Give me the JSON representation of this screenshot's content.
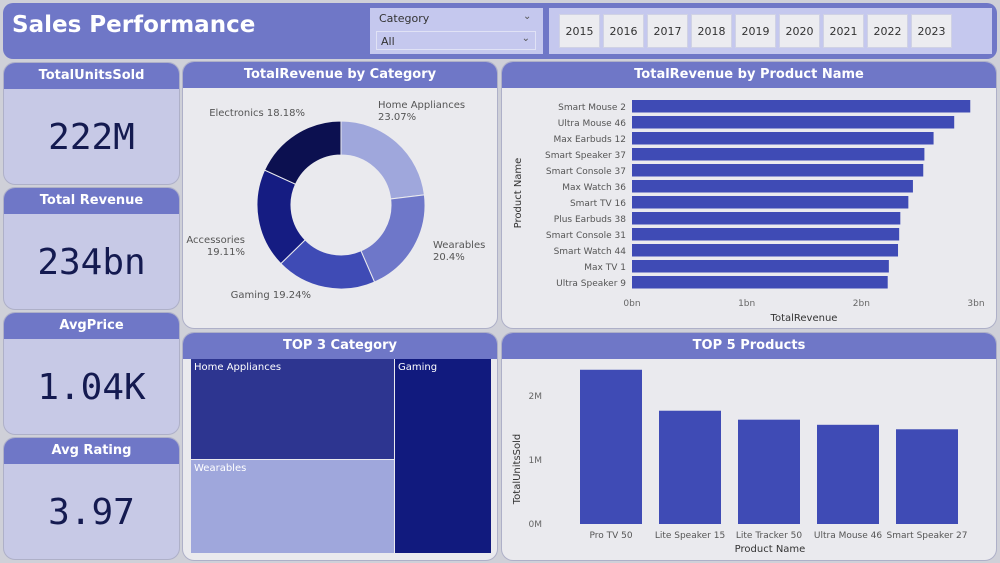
{
  "header": {
    "title": "Sales Performance"
  },
  "slicer": {
    "label": "Category",
    "value": "All",
    "icon": "chevron-down-icon"
  },
  "years": [
    "2015",
    "2016",
    "2017",
    "2018",
    "2019",
    "2020",
    "2021",
    "2022",
    "2023"
  ],
  "kpis": [
    {
      "label": "TotalUnitsSold",
      "value": "222M"
    },
    {
      "label": "Total Revenue",
      "value": "234bn"
    },
    {
      "label": "AvgPrice",
      "value": "1.04K"
    },
    {
      "label": "Avg Rating",
      "value": "3.97"
    }
  ],
  "colors": {
    "accent": "#6f77c7",
    "bar": "#3f4bb5"
  },
  "chart_data": [
    {
      "type": "pie",
      "title": "TotalRevenue by Category",
      "donut": true,
      "categories": [
        "Home Appliances",
        "Wearables",
        "Gaming",
        "Accessories",
        "Electronics"
      ],
      "values": [
        23.07,
        20.4,
        19.24,
        19.11,
        18.18
      ],
      "labels": [
        "23.07%",
        "20.4%",
        "19.24%",
        "19.11%",
        "18.18%"
      ],
      "colors": [
        "#9fa7dc",
        "#6e77c9",
        "#3f4bb5",
        "#151c82",
        "#0c1050"
      ]
    },
    {
      "type": "bar",
      "orientation": "horizontal",
      "title": "TotalRevenue by Product Name",
      "xlabel": "TotalRevenue",
      "ylabel": "Product Name",
      "categories": [
        "Smart Mouse 2",
        "Ultra Mouse 46",
        "Max Earbuds 12",
        "Smart Speaker 37",
        "Smart Console 37",
        "Max Watch 36",
        "Smart TV 16",
        "Plus Earbuds 38",
        "Smart Console 31",
        "Smart Watch 44",
        "Max TV 1",
        "Ultra Speaker 9"
      ],
      "values": [
        2.95,
        2.81,
        2.63,
        2.55,
        2.54,
        2.45,
        2.41,
        2.34,
        2.33,
        2.32,
        2.24,
        2.23
      ],
      "unit": "bn",
      "xlim": [
        0,
        3
      ],
      "ticks": [
        "0bn",
        "1bn",
        "2bn",
        "3bn"
      ]
    },
    {
      "type": "treemap",
      "title": "TOP 3 Category",
      "categories": [
        "Home Appliances",
        "Gaming",
        "Wearables"
      ],
      "values": [
        23.07,
        19.24,
        20.4
      ]
    },
    {
      "type": "bar",
      "title": "TOP 5 Products",
      "xlabel": "Product Name",
      "ylabel": "TotalUnitsSold",
      "categories": [
        "Pro TV 50",
        "Lite Speaker 15",
        "Lite Tracker 50",
        "Ultra Mouse 46",
        "Smart Speaker 27"
      ],
      "values": [
        2.41,
        1.77,
        1.63,
        1.55,
        1.48
      ],
      "unit": "M",
      "ylim": [
        0,
        2.5
      ],
      "ticks": [
        "0M",
        "1M",
        "2M"
      ]
    }
  ]
}
